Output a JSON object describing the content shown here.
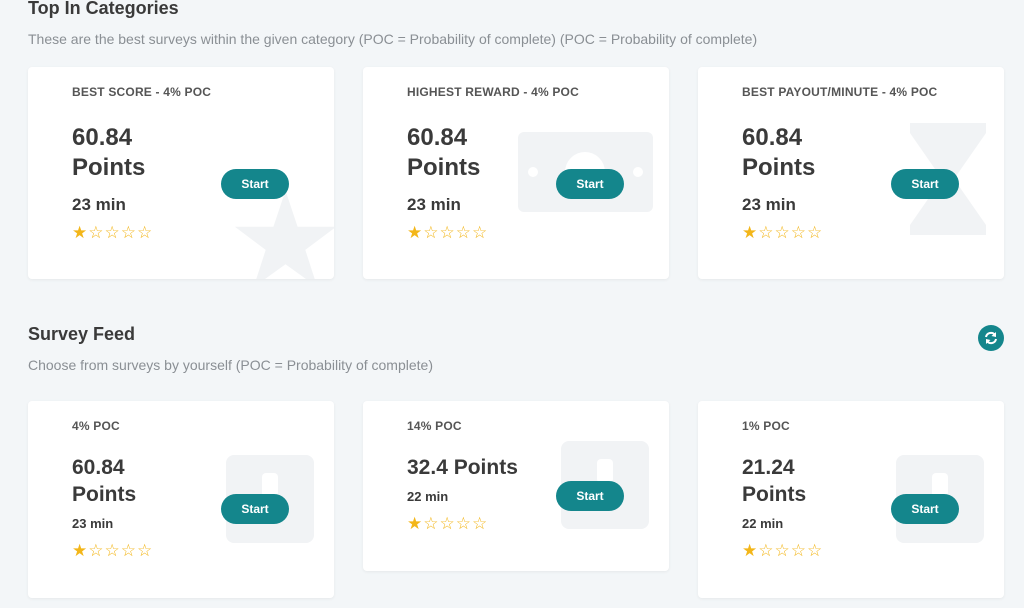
{
  "top_categories": {
    "title": "Top In Categories",
    "subtitle": "These are the best surveys within the given category (POC = Probability of complete) (POC = Probability of complete)",
    "cards": [
      {
        "label": "BEST SCORE - 4% POC",
        "points_value": "60.84",
        "points_unit": "Points",
        "time": "23 min",
        "rating": 1,
        "max_rating": 5,
        "button": "Start",
        "watermark": "star-icon"
      },
      {
        "label": "HIGHEST REWARD - 4% POC",
        "points_value": "60.84",
        "points_unit": "Points",
        "time": "23 min",
        "rating": 1,
        "max_rating": 5,
        "button": "Start",
        "watermark": "money-icon"
      },
      {
        "label": "BEST PAYOUT/MINUTE - 4% POC",
        "points_value": "60.84",
        "points_unit": "Points",
        "time": "23 min",
        "rating": 1,
        "max_rating": 5,
        "button": "Start",
        "watermark": "hourglass-icon"
      }
    ]
  },
  "survey_feed": {
    "title": "Survey Feed",
    "subtitle": "Choose from surveys by yourself (POC = Probability of complete)",
    "refresh_icon": "refresh-icon",
    "cards": [
      {
        "label": "4% POC",
        "points_value": "60.84",
        "points_unit": "Points",
        "time": "23 min",
        "rating": 1,
        "max_rating": 5,
        "button": "Start",
        "watermark": "survey-icon"
      },
      {
        "label": "14% POC",
        "points_value": "32.4 Points",
        "points_unit": "",
        "time": "22 min",
        "rating": 1,
        "max_rating": 5,
        "button": "Start",
        "watermark": "survey-icon"
      },
      {
        "label": "1% POC",
        "points_value": "21.24",
        "points_unit": "Points",
        "time": "22 min",
        "rating": 1,
        "max_rating": 5,
        "button": "Start",
        "watermark": "survey-icon"
      }
    ]
  },
  "colors": {
    "accent": "#14868c",
    "star": "#f3b619",
    "background": "#f3f6f8"
  }
}
